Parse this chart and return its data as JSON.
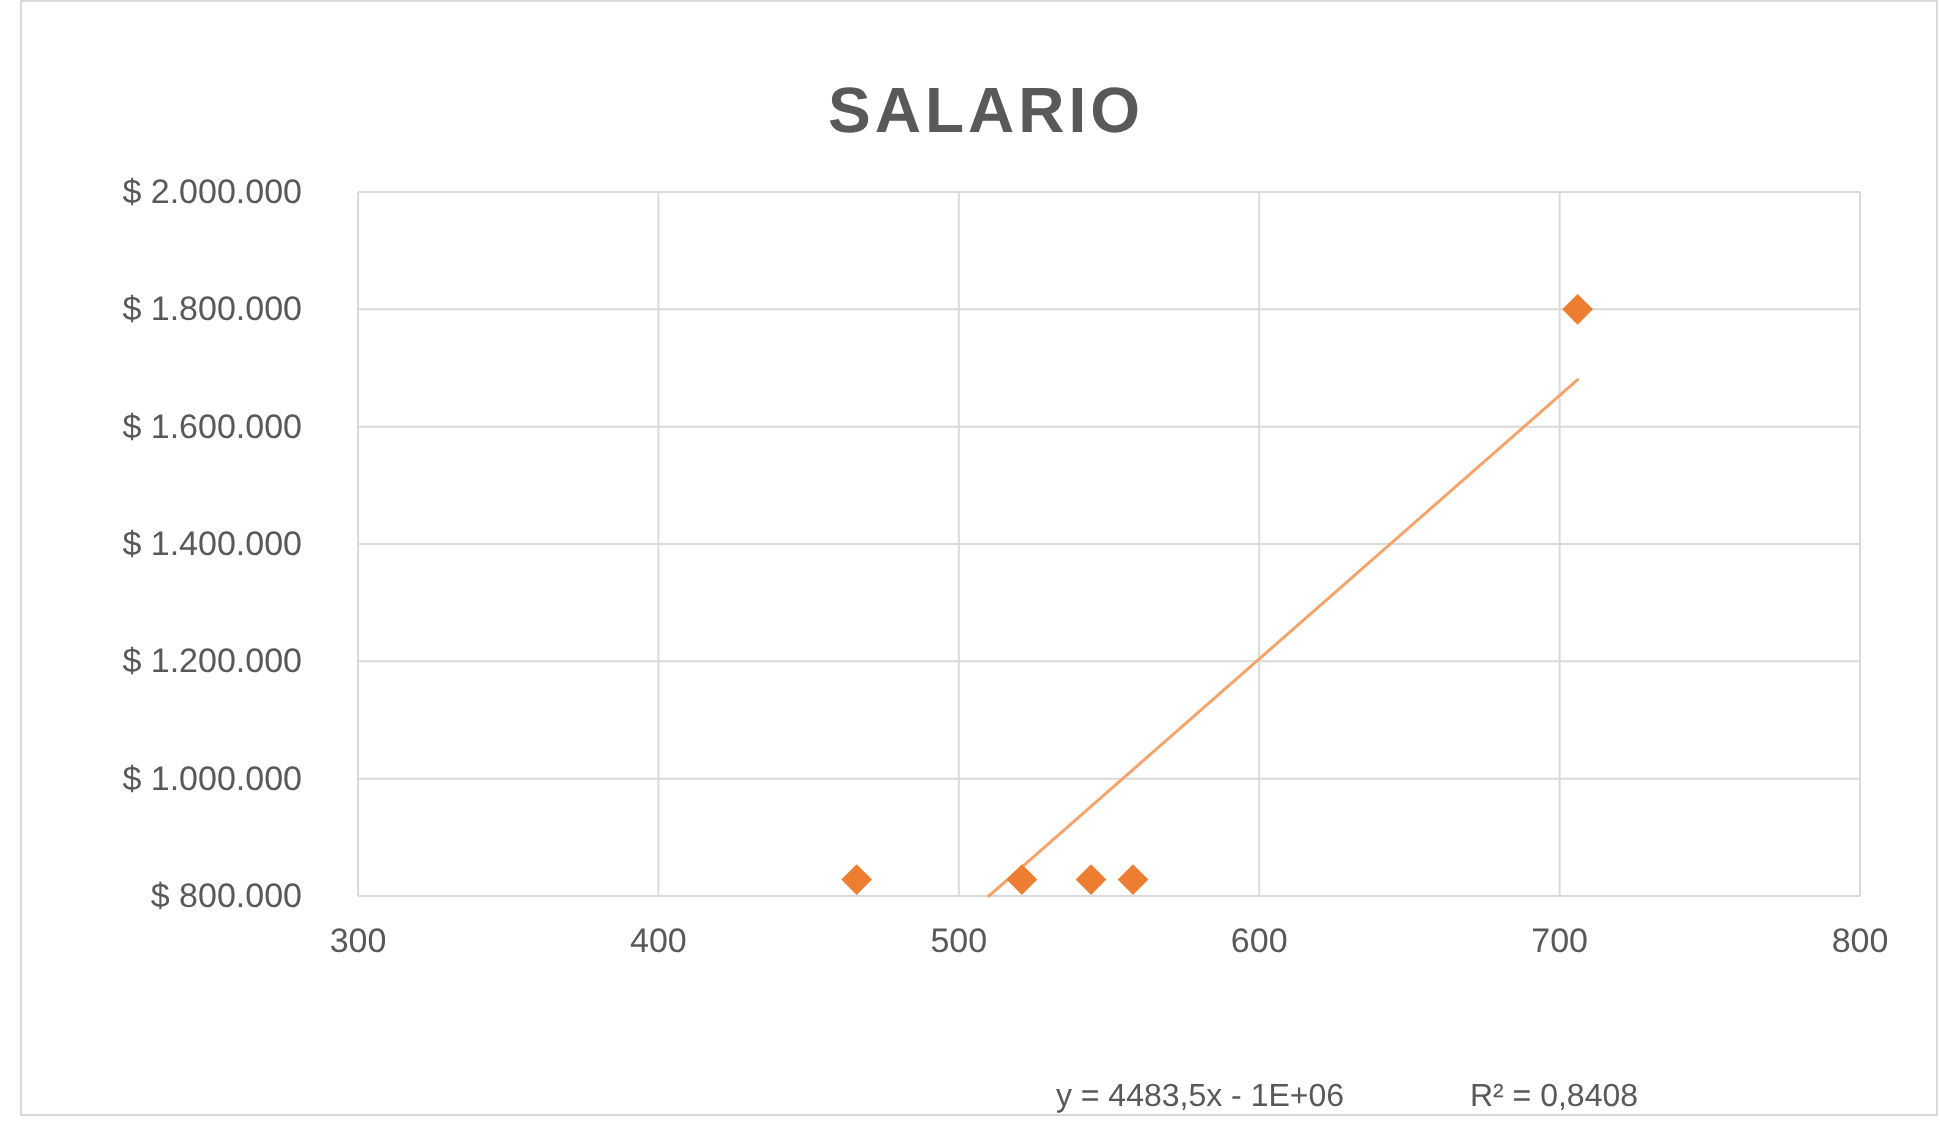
{
  "chart_data": {
    "type": "scatter",
    "title": "SALARIO",
    "xlim": [
      300,
      800
    ],
    "xticks": [
      300,
      400,
      500,
      600,
      700,
      800
    ],
    "ylim": [
      800000,
      2000000
    ],
    "yticks": [
      {
        "value": 800000,
        "label": "$ 800.000"
      },
      {
        "value": 1000000,
        "label": "$ 1.000.000"
      },
      {
        "value": 1200000,
        "label": "$ 1.200.000"
      },
      {
        "value": 1400000,
        "label": "$ 1.400.000"
      },
      {
        "value": 1600000,
        "label": "$ 1.600.000"
      },
      {
        "value": 1800000,
        "label": "$ 1.800.000"
      },
      {
        "value": 2000000,
        "label": "$ 2.000.000"
      }
    ],
    "grid": true,
    "series": [
      {
        "color": "#ed7d31",
        "marker": "diamond",
        "x": [
          466,
          521,
          544,
          558,
          706
        ],
        "values": [
          828000,
          828000,
          828000,
          828000,
          1800000
        ]
      },
      {
        "type": "line",
        "color": "#f4a46a",
        "marker": "none",
        "x": [
          510,
          706
        ],
        "values": [
          800000,
          1680000
        ]
      }
    ],
    "annotations": [
      "y = 4483,5x - 1E+06",
      "R² = 0,8408"
    ]
  }
}
